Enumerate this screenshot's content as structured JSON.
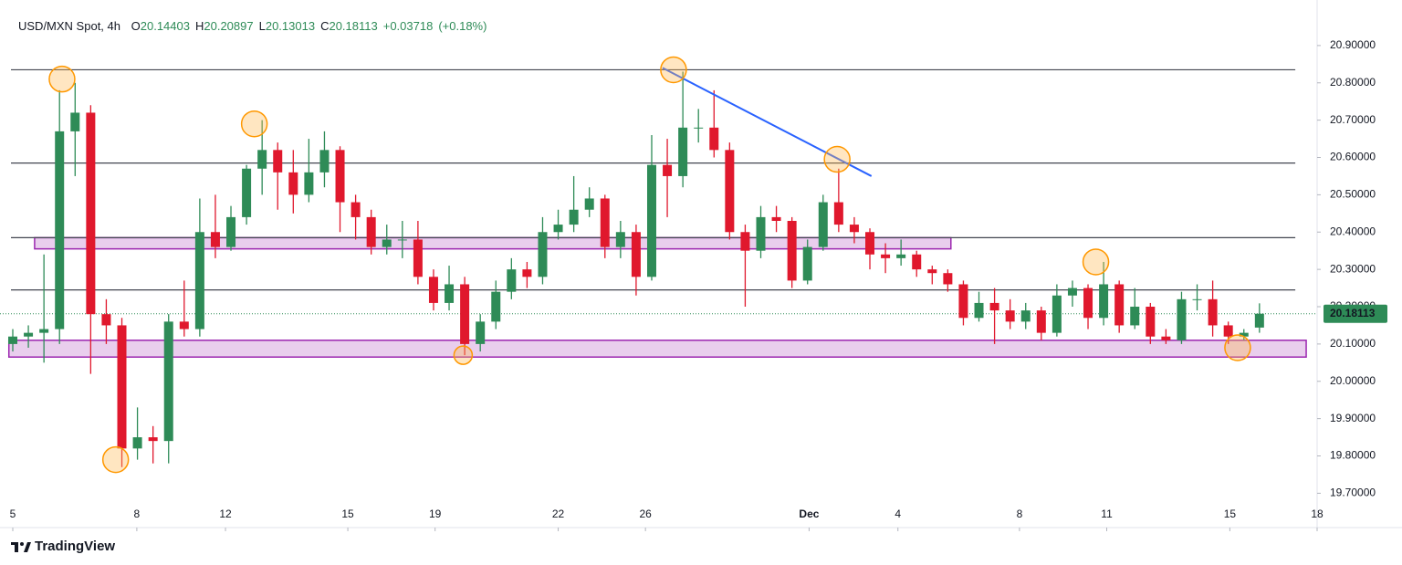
{
  "chart_data": {
    "type": "candlestick",
    "title": "USD/MXN Spot, 4h",
    "ohlc_header": [
      {
        "label": "O",
        "value": "20.14403"
      },
      {
        "label": "H",
        "value": "20.20897"
      },
      {
        "label": "L",
        "value": "20.13013"
      },
      {
        "label": "C",
        "value": "20.18113"
      }
    ],
    "change": "+0.03718",
    "change_percent": "(+0.18%)",
    "last_price": {
      "value": 20.18113,
      "label": "20.18113"
    },
    "brand": "TradingView",
    "up_color": "#2e8b57",
    "down_color": "#e0182d",
    "candles": [
      [
        20.1,
        20.14,
        20.08,
        20.12
      ],
      [
        20.12,
        20.15,
        20.09,
        20.13
      ],
      [
        20.13,
        20.34,
        20.05,
        20.14
      ],
      [
        20.14,
        20.78,
        20.1,
        20.67
      ],
      [
        20.67,
        20.8,
        20.55,
        20.72
      ],
      [
        20.72,
        20.74,
        20.02,
        20.18
      ],
      [
        20.18,
        20.22,
        20.1,
        20.15
      ],
      [
        20.15,
        20.17,
        19.77,
        19.82
      ],
      [
        19.82,
        19.93,
        19.79,
        19.85
      ],
      [
        19.85,
        19.88,
        19.78,
        19.84
      ],
      [
        19.84,
        20.18,
        19.78,
        20.16
      ],
      [
        20.16,
        20.27,
        20.12,
        20.14
      ],
      [
        20.14,
        20.49,
        20.12,
        20.4
      ],
      [
        20.4,
        20.5,
        20.33,
        20.36
      ],
      [
        20.36,
        20.47,
        20.35,
        20.44
      ],
      [
        20.44,
        20.58,
        20.42,
        20.57
      ],
      [
        20.57,
        20.7,
        20.5,
        20.62
      ],
      [
        20.62,
        20.64,
        20.46,
        20.56
      ],
      [
        20.56,
        20.62,
        20.45,
        20.5
      ],
      [
        20.5,
        20.65,
        20.48,
        20.56
      ],
      [
        20.56,
        20.67,
        20.52,
        20.62
      ],
      [
        20.62,
        20.63,
        20.4,
        20.48
      ],
      [
        20.48,
        20.5,
        20.38,
        20.44
      ],
      [
        20.44,
        20.46,
        20.34,
        20.36
      ],
      [
        20.36,
        20.42,
        20.34,
        20.38
      ],
      [
        20.38,
        20.43,
        20.33,
        20.38
      ],
      [
        20.38,
        20.43,
        20.26,
        20.28
      ],
      [
        20.28,
        20.3,
        20.19,
        20.21
      ],
      [
        20.21,
        20.31,
        20.19,
        20.26
      ],
      [
        20.26,
        20.28,
        20.07,
        20.1
      ],
      [
        20.1,
        20.18,
        20.08,
        20.16
      ],
      [
        20.16,
        20.27,
        20.14,
        20.24
      ],
      [
        20.24,
        20.33,
        20.22,
        20.3
      ],
      [
        20.3,
        20.32,
        20.25,
        20.28
      ],
      [
        20.28,
        20.44,
        20.26,
        20.4
      ],
      [
        20.4,
        20.46,
        20.38,
        20.42
      ],
      [
        20.42,
        20.55,
        20.4,
        20.46
      ],
      [
        20.46,
        20.52,
        20.44,
        20.49
      ],
      [
        20.49,
        20.5,
        20.33,
        20.36
      ],
      [
        20.36,
        20.43,
        20.33,
        20.4
      ],
      [
        20.4,
        20.42,
        20.23,
        20.28
      ],
      [
        20.28,
        20.66,
        20.27,
        20.58
      ],
      [
        20.58,
        20.65,
        20.44,
        20.55
      ],
      [
        20.55,
        20.83,
        20.52,
        20.68
      ],
      [
        20.68,
        20.73,
        20.64,
        20.68
      ],
      [
        20.68,
        20.78,
        20.6,
        20.62
      ],
      [
        20.62,
        20.64,
        20.38,
        20.4
      ],
      [
        20.4,
        20.42,
        20.2,
        20.35
      ],
      [
        20.35,
        20.47,
        20.33,
        20.44
      ],
      [
        20.44,
        20.47,
        20.4,
        20.43
      ],
      [
        20.43,
        20.44,
        20.25,
        20.27
      ],
      [
        20.27,
        20.38,
        20.26,
        20.36
      ],
      [
        20.36,
        20.5,
        20.35,
        20.48
      ],
      [
        20.48,
        20.57,
        20.4,
        20.42
      ],
      [
        20.42,
        20.44,
        20.37,
        20.4
      ],
      [
        20.4,
        20.41,
        20.3,
        20.34
      ],
      [
        20.34,
        20.37,
        20.29,
        20.33
      ],
      [
        20.33,
        20.38,
        20.31,
        20.34
      ],
      [
        20.34,
        20.35,
        20.28,
        20.3
      ],
      [
        20.3,
        20.31,
        20.26,
        20.29
      ],
      [
        20.29,
        20.3,
        20.24,
        20.26
      ],
      [
        20.26,
        20.27,
        20.15,
        20.17
      ],
      [
        20.17,
        20.24,
        20.16,
        20.21
      ],
      [
        20.21,
        20.25,
        20.1,
        20.19
      ],
      [
        20.19,
        20.22,
        20.14,
        20.16
      ],
      [
        20.16,
        20.21,
        20.14,
        20.19
      ],
      [
        20.19,
        20.2,
        20.11,
        20.13
      ],
      [
        20.13,
        20.26,
        20.12,
        20.23
      ],
      [
        20.23,
        20.27,
        20.2,
        20.25
      ],
      [
        20.25,
        20.26,
        20.14,
        20.17
      ],
      [
        20.17,
        20.32,
        20.15,
        20.26
      ],
      [
        20.26,
        20.27,
        20.13,
        20.15
      ],
      [
        20.15,
        20.25,
        20.14,
        20.2
      ],
      [
        20.2,
        20.21,
        20.1,
        20.12
      ],
      [
        20.12,
        20.14,
        20.1,
        20.11
      ],
      [
        20.11,
        20.24,
        20.1,
        20.22
      ],
      [
        20.22,
        20.26,
        20.19,
        20.22
      ],
      [
        20.22,
        20.27,
        20.12,
        20.15
      ],
      [
        20.15,
        20.16,
        20.1,
        20.12
      ],
      [
        20.12,
        20.14,
        20.11,
        20.13
      ],
      [
        20.14403,
        20.20897,
        20.13013,
        20.18113
      ]
    ],
    "xlim": [
      -0.82,
      83.7
    ],
    "xticks": [
      {
        "value": 0,
        "label": "5"
      },
      {
        "value": 7.96,
        "label": "8"
      },
      {
        "value": 13.65,
        "label": "12"
      },
      {
        "value": 21.5,
        "label": "15"
      },
      {
        "value": 27.1,
        "label": "19"
      },
      {
        "value": 35.0,
        "label": "22"
      },
      {
        "value": 40.6,
        "label": "26"
      },
      {
        "value": 51.1,
        "label": "Dec"
      },
      {
        "value": 56.8,
        "label": "4"
      },
      {
        "value": 64.6,
        "label": "8"
      },
      {
        "value": 70.2,
        "label": "11"
      },
      {
        "value": 78.1,
        "label": "15"
      },
      {
        "value": 83.7,
        "label": "18"
      }
    ],
    "ylim": [
      19.63,
      21.0
    ],
    "yticks": [
      {
        "value": 19.7,
        "label": "19.70000"
      },
      {
        "value": 19.8,
        "label": "19.80000"
      },
      {
        "value": 19.9,
        "label": "19.90000"
      },
      {
        "value": 20.0,
        "label": "20.00000"
      },
      {
        "value": 20.1,
        "label": "20.10000"
      },
      {
        "value": 20.2,
        "label": "20.20000"
      },
      {
        "value": 20.3,
        "label": "20.30000"
      },
      {
        "value": 20.4,
        "label": "20.40000"
      },
      {
        "value": 20.5,
        "label": "20.50000"
      },
      {
        "value": 20.6,
        "label": "20.60000"
      },
      {
        "value": 20.7,
        "label": "20.70000"
      },
      {
        "value": 20.8,
        "label": "20.80000"
      },
      {
        "value": 20.9,
        "label": "20.90000"
      }
    ],
    "levels": [
      20.835,
      20.585,
      20.385,
      20.245
    ],
    "zones": [
      {
        "x": [
          1.4,
          60.2
        ],
        "y": [
          20.355,
          20.385
        ]
      },
      {
        "x": [
          -0.25,
          83.0
        ],
        "y": [
          20.065,
          20.11
        ]
      }
    ],
    "trendline": {
      "x": [
        41.7,
        55.1
      ],
      "y": [
        20.84,
        20.55
      ]
    },
    "markers": [
      {
        "x": 3.16,
        "y": 20.81
      },
      {
        "x": 6.6,
        "y": 19.79
      },
      {
        "x": 15.5,
        "y": 20.69
      },
      {
        "x": 28.9,
        "y": 20.07
      },
      {
        "x": 42.4,
        "y": 20.835
      },
      {
        "x": 52.9,
        "y": 20.595
      },
      {
        "x": 69.5,
        "y": 20.32
      },
      {
        "x": 78.6,
        "y": 20.09
      }
    ]
  }
}
